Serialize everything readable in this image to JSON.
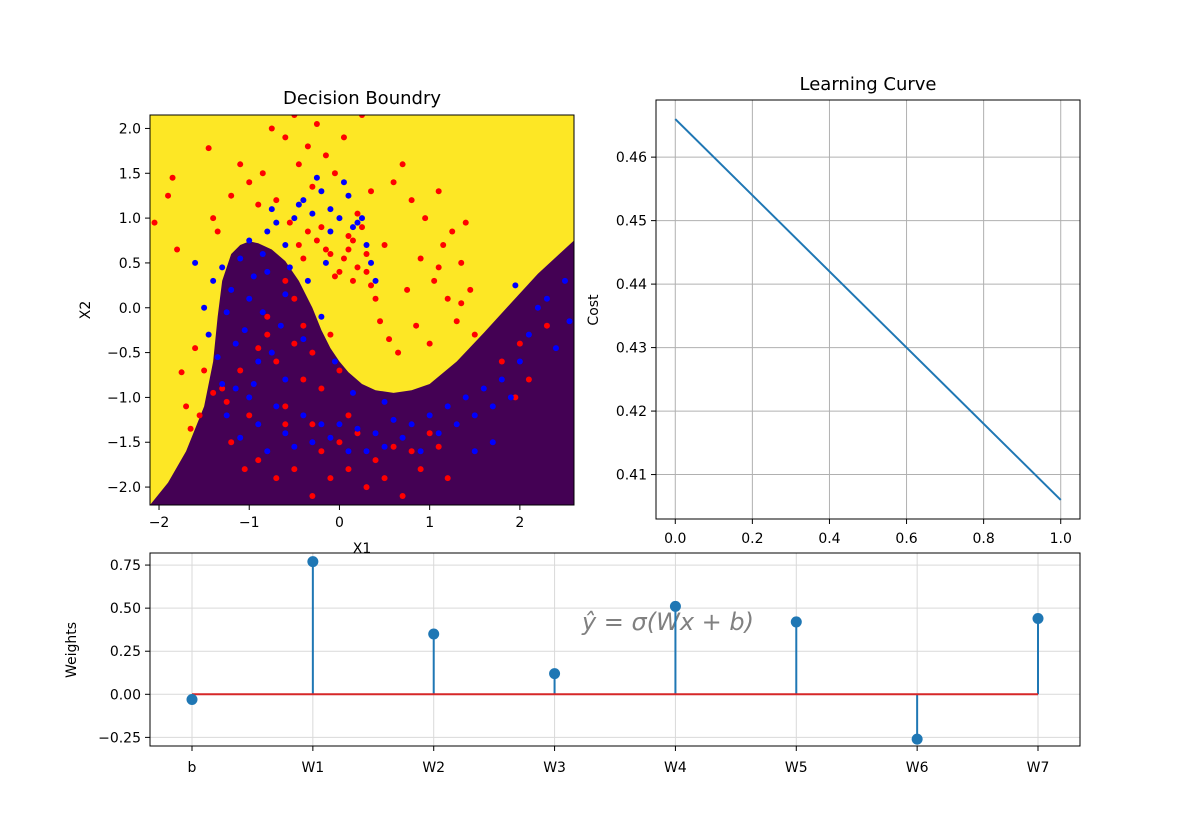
{
  "chart_data": [
    {
      "type": "scatter",
      "title": "Decision Boundry",
      "xlabel": "X1",
      "ylabel": "X2",
      "xlim": [
        -2.1,
        2.6
      ],
      "ylim": [
        -2.2,
        2.15
      ],
      "xticks": [
        -2,
        -1,
        0,
        1,
        2
      ],
      "xtick_labels": [
        "−2",
        "−1",
        "0",
        "1",
        "2"
      ],
      "yticks": [
        -2.0,
        -1.5,
        -1.0,
        -0.5,
        0.0,
        0.5,
        1.0,
        1.5,
        2.0
      ],
      "ytick_labels": [
        "−2.0",
        "−1.5",
        "−1.0",
        "−0.5",
        "0.0",
        "0.5",
        "1.0",
        "1.5",
        "2.0"
      ],
      "background": {
        "upper_region_color": "#fde725",
        "lower_region_color": "#440154",
        "boundary_x": [
          -2.1,
          -1.9,
          -1.7,
          -1.5,
          -1.4,
          -1.35,
          -1.3,
          -1.2,
          -1.1,
          -1.0,
          -0.9,
          -0.75,
          -0.6,
          -0.45,
          -0.3,
          -0.2,
          -0.1,
          0.0,
          0.1,
          0.25,
          0.4,
          0.6,
          0.8,
          1.0,
          1.3,
          1.6,
          1.9,
          2.2,
          2.6
        ],
        "boundary_y": [
          -2.2,
          -1.95,
          -1.6,
          -1.1,
          -0.6,
          -0.1,
          0.3,
          0.6,
          0.7,
          0.74,
          0.72,
          0.65,
          0.52,
          0.3,
          0.0,
          -0.25,
          -0.45,
          -0.6,
          -0.72,
          -0.85,
          -0.92,
          -0.95,
          -0.92,
          -0.85,
          -0.6,
          -0.28,
          0.05,
          0.38,
          0.75
        ]
      },
      "series": [
        {
          "color": "#ff0000",
          "points": [
            [
              -2.05,
              0.95
            ],
            [
              -1.9,
              1.25
            ],
            [
              -1.85,
              1.45
            ],
            [
              -1.8,
              0.65
            ],
            [
              -1.75,
              -0.72
            ],
            [
              -1.7,
              -1.1
            ],
            [
              -1.65,
              -1.35
            ],
            [
              -1.6,
              -0.45
            ],
            [
              -1.55,
              -1.2
            ],
            [
              -1.5,
              -0.7
            ],
            [
              -1.45,
              1.78
            ],
            [
              -1.4,
              1.0
            ],
            [
              -1.35,
              0.85
            ],
            [
              -1.3,
              -0.9
            ],
            [
              -1.25,
              -1.05
            ],
            [
              -1.2,
              1.25
            ],
            [
              -1.1,
              1.6
            ],
            [
              -1.0,
              1.4
            ],
            [
              -0.9,
              1.15
            ],
            [
              -0.85,
              1.5
            ],
            [
              -0.75,
              2.0
            ],
            [
              -0.7,
              1.2
            ],
            [
              -0.6,
              1.9
            ],
            [
              -0.55,
              0.95
            ],
            [
              -0.5,
              2.15
            ],
            [
              -0.45,
              1.6
            ],
            [
              -0.4,
              0.55
            ],
            [
              -0.35,
              1.8
            ],
            [
              -0.3,
              1.35
            ],
            [
              -0.25,
              2.05
            ],
            [
              -0.2,
              0.9
            ],
            [
              -0.15,
              1.7
            ],
            [
              -0.1,
              0.6
            ],
            [
              -0.05,
              1.5
            ],
            [
              0.0,
              0.4
            ],
            [
              0.05,
              1.9
            ],
            [
              0.1,
              0.8
            ],
            [
              0.15,
              0.3
            ],
            [
              0.2,
              1.05
            ],
            [
              0.25,
              2.15
            ],
            [
              0.3,
              0.6
            ],
            [
              0.35,
              1.3
            ],
            [
              0.4,
              0.1
            ],
            [
              0.45,
              -0.15
            ],
            [
              0.5,
              0.7
            ],
            [
              0.55,
              -0.35
            ],
            [
              0.6,
              1.4
            ],
            [
              0.65,
              -0.5
            ],
            [
              0.7,
              1.6
            ],
            [
              0.75,
              0.2
            ],
            [
              0.8,
              1.2
            ],
            [
              0.85,
              -0.2
            ],
            [
              0.9,
              0.55
            ],
            [
              0.95,
              1.0
            ],
            [
              1.0,
              -0.4
            ],
            [
              1.05,
              0.3
            ],
            [
              1.1,
              1.3
            ],
            [
              1.15,
              0.7
            ],
            [
              1.2,
              0.1
            ],
            [
              1.25,
              0.85
            ],
            [
              1.3,
              -0.15
            ],
            [
              1.35,
              0.5
            ],
            [
              1.4,
              0.95
            ],
            [
              1.45,
              0.2
            ],
            [
              1.5,
              -0.3
            ],
            [
              1.35,
              0.05
            ],
            [
              1.1,
              0.45
            ],
            [
              0.2,
              0.45
            ],
            [
              0.1,
              0.65
            ],
            [
              -0.05,
              0.35
            ],
            [
              -1.4,
              -0.95
            ],
            [
              -1.2,
              -1.5
            ],
            [
              -1.1,
              -0.7
            ],
            [
              -1.0,
              -1.2
            ],
            [
              -0.9,
              -0.45
            ],
            [
              -0.8,
              -0.3
            ],
            [
              -0.7,
              -0.6
            ],
            [
              -0.6,
              -1.1
            ],
            [
              -0.5,
              0.1
            ],
            [
              -0.4,
              -0.2
            ],
            [
              -0.3,
              -0.5
            ],
            [
              -0.2,
              -0.9
            ],
            [
              -0.1,
              -0.3
            ],
            [
              0.0,
              -0.7
            ],
            [
              0.1,
              -1.2
            ],
            [
              -0.6,
              0.3
            ],
            [
              -0.8,
              -0.1
            ],
            [
              -0.5,
              -0.4
            ],
            [
              -0.3,
              -1.3
            ],
            [
              -0.2,
              -1.6
            ],
            [
              -0.1,
              -1.9
            ],
            [
              0.0,
              -1.5
            ],
            [
              0.1,
              -1.8
            ],
            [
              0.2,
              -1.4
            ],
            [
              0.3,
              -2.0
            ],
            [
              0.4,
              -1.7
            ],
            [
              0.5,
              -1.9
            ],
            [
              0.6,
              -1.55
            ],
            [
              0.7,
              -2.1
            ],
            [
              0.8,
              -1.6
            ],
            [
              0.9,
              -1.8
            ],
            [
              1.0,
              -1.4
            ],
            [
              1.1,
              -1.55
            ],
            [
              1.2,
              -1.9
            ],
            [
              -0.9,
              -1.7
            ],
            [
              -0.7,
              -1.9
            ],
            [
              -0.5,
              -1.8
            ],
            [
              -0.3,
              -2.1
            ],
            [
              -0.6,
              -1.3
            ],
            [
              -0.4,
              -0.8
            ],
            [
              -1.05,
              -1.8
            ],
            [
              2.0,
              -0.4
            ],
            [
              2.1,
              -0.8
            ],
            [
              1.95,
              -1.0
            ],
            [
              2.3,
              -0.2
            ],
            [
              1.8,
              -0.6
            ],
            [
              -0.35,
              0.85
            ],
            [
              -0.25,
              0.75
            ],
            [
              -0.15,
              0.65
            ],
            [
              0.05,
              0.55
            ],
            [
              0.15,
              0.75
            ],
            [
              0.25,
              0.9
            ],
            [
              0.3,
              0.4
            ],
            [
              -0.45,
              0.7
            ],
            [
              0.35,
              0.25
            ]
          ]
        },
        {
          "color": "#0000ff",
          "points": [
            [
              -1.6,
              0.5
            ],
            [
              -1.5,
              0.0
            ],
            [
              -1.45,
              -0.3
            ],
            [
              -1.4,
              0.3
            ],
            [
              -1.35,
              -0.55
            ],
            [
              -1.3,
              0.45
            ],
            [
              -1.25,
              -0.05
            ],
            [
              -1.2,
              0.2
            ],
            [
              -1.15,
              -0.4
            ],
            [
              -1.1,
              0.55
            ],
            [
              -1.05,
              -0.25
            ],
            [
              -1.0,
              0.1
            ],
            [
              -0.95,
              0.35
            ],
            [
              -0.9,
              -0.6
            ],
            [
              -0.85,
              0.6
            ],
            [
              -0.8,
              0.85
            ],
            [
              -0.75,
              1.1
            ],
            [
              -0.7,
              0.95
            ],
            [
              -0.6,
              0.7
            ],
            [
              -0.5,
              1.0
            ],
            [
              -0.4,
              1.2
            ],
            [
              -0.3,
              1.05
            ],
            [
              -0.2,
              1.3
            ],
            [
              -0.1,
              1.1
            ],
            [
              0.0,
              1.0
            ],
            [
              0.1,
              1.25
            ],
            [
              0.2,
              0.95
            ],
            [
              0.3,
              0.7
            ],
            [
              0.35,
              0.5
            ],
            [
              0.4,
              0.3
            ],
            [
              -0.15,
              0.5
            ],
            [
              -0.35,
              0.3
            ],
            [
              -0.6,
              0.15
            ],
            [
              -0.8,
              0.4
            ],
            [
              -1.3,
              -0.85
            ],
            [
              -1.25,
              -1.2
            ],
            [
              -1.1,
              -1.45
            ],
            [
              -1.0,
              -1.0
            ],
            [
              -0.9,
              -1.3
            ],
            [
              -0.8,
              -1.6
            ],
            [
              -0.7,
              -1.1
            ],
            [
              -0.6,
              -1.4
            ],
            [
              -0.5,
              -1.55
            ],
            [
              -0.4,
              -1.2
            ],
            [
              -0.3,
              -1.5
            ],
            [
              -0.2,
              -1.3
            ],
            [
              -0.1,
              -1.45
            ],
            [
              0.0,
              -1.3
            ],
            [
              0.1,
              -1.6
            ],
            [
              0.2,
              -1.35
            ],
            [
              0.3,
              -1.6
            ],
            [
              0.4,
              -1.4
            ],
            [
              0.5,
              -1.55
            ],
            [
              0.6,
              -1.25
            ],
            [
              0.7,
              -1.45
            ],
            [
              0.8,
              -1.3
            ],
            [
              0.9,
              -1.6
            ],
            [
              1.0,
              -1.2
            ],
            [
              1.1,
              -1.4
            ],
            [
              1.2,
              -1.1
            ],
            [
              1.3,
              -1.3
            ],
            [
              1.4,
              -1.0
            ],
            [
              1.5,
              -1.2
            ],
            [
              1.6,
              -0.9
            ],
            [
              1.7,
              -1.1
            ],
            [
              1.8,
              -0.8
            ],
            [
              1.9,
              -1.0
            ],
            [
              2.0,
              -0.6
            ],
            [
              2.1,
              -0.3
            ],
            [
              2.2,
              0.0
            ],
            [
              2.3,
              0.1
            ],
            [
              2.4,
              -0.45
            ],
            [
              2.5,
              0.3
            ],
            [
              2.55,
              -0.15
            ],
            [
              1.95,
              0.25
            ],
            [
              1.7,
              -1.5
            ],
            [
              1.5,
              -1.6
            ],
            [
              -0.4,
              -0.35
            ],
            [
              -0.6,
              -0.8
            ],
            [
              -0.75,
              -0.5
            ],
            [
              -0.95,
              -0.85
            ],
            [
              -1.15,
              -0.9
            ],
            [
              -0.2,
              -0.1
            ],
            [
              -0.05,
              -0.6
            ],
            [
              0.15,
              -0.95
            ],
            [
              0.5,
              -1.05
            ],
            [
              -0.25,
              1.45
            ],
            [
              -0.45,
              1.15
            ],
            [
              0.05,
              1.4
            ],
            [
              0.15,
              0.9
            ],
            [
              0.25,
              1.0
            ],
            [
              -0.55,
              0.45
            ],
            [
              -0.65,
              -0.2
            ],
            [
              -0.85,
              -0.05
            ],
            [
              -1.0,
              0.75
            ],
            [
              -0.1,
              0.85
            ]
          ]
        }
      ]
    },
    {
      "type": "line",
      "title": "Learning Curve",
      "xlabel": "",
      "ylabel": "Cost",
      "x": [
        0.0,
        1.0
      ],
      "y": [
        0.466,
        0.406
      ],
      "xlim": [
        -0.05,
        1.05
      ],
      "ylim": [
        0.403,
        0.469
      ],
      "xticks": [
        0.0,
        0.2,
        0.4,
        0.6,
        0.8,
        1.0
      ],
      "xtick_labels": [
        "0.0",
        "0.2",
        "0.4",
        "0.6",
        "0.8",
        "1.0"
      ],
      "yticks": [
        0.41,
        0.42,
        0.43,
        0.44,
        0.45,
        0.46
      ],
      "ytick_labels": [
        "0.41",
        "0.42",
        "0.43",
        "0.44",
        "0.45",
        "0.46"
      ],
      "grid": true,
      "line_color": "#1f77b4"
    },
    {
      "type": "stem",
      "title": "",
      "xlabel": "",
      "ylabel": "Weights",
      "categories": [
        "b",
        "W1",
        "W2",
        "W3",
        "W4",
        "W5",
        "W6",
        "W7"
      ],
      "values": [
        -0.03,
        0.77,
        0.35,
        0.12,
        0.51,
        0.42,
        -0.26,
        0.44
      ],
      "ylim": [
        -0.3,
        0.82
      ],
      "yticks": [
        -0.25,
        0.0,
        0.25,
        0.5,
        0.75
      ],
      "ytick_labels": [
        "−0.25",
        "0.00",
        "0.25",
        "0.50",
        "0.75"
      ],
      "grid": true,
      "stem_color": "#1f77b4",
      "baseline_color": "#d62728",
      "annotation": "ŷ = σ(Wx + b)"
    }
  ]
}
